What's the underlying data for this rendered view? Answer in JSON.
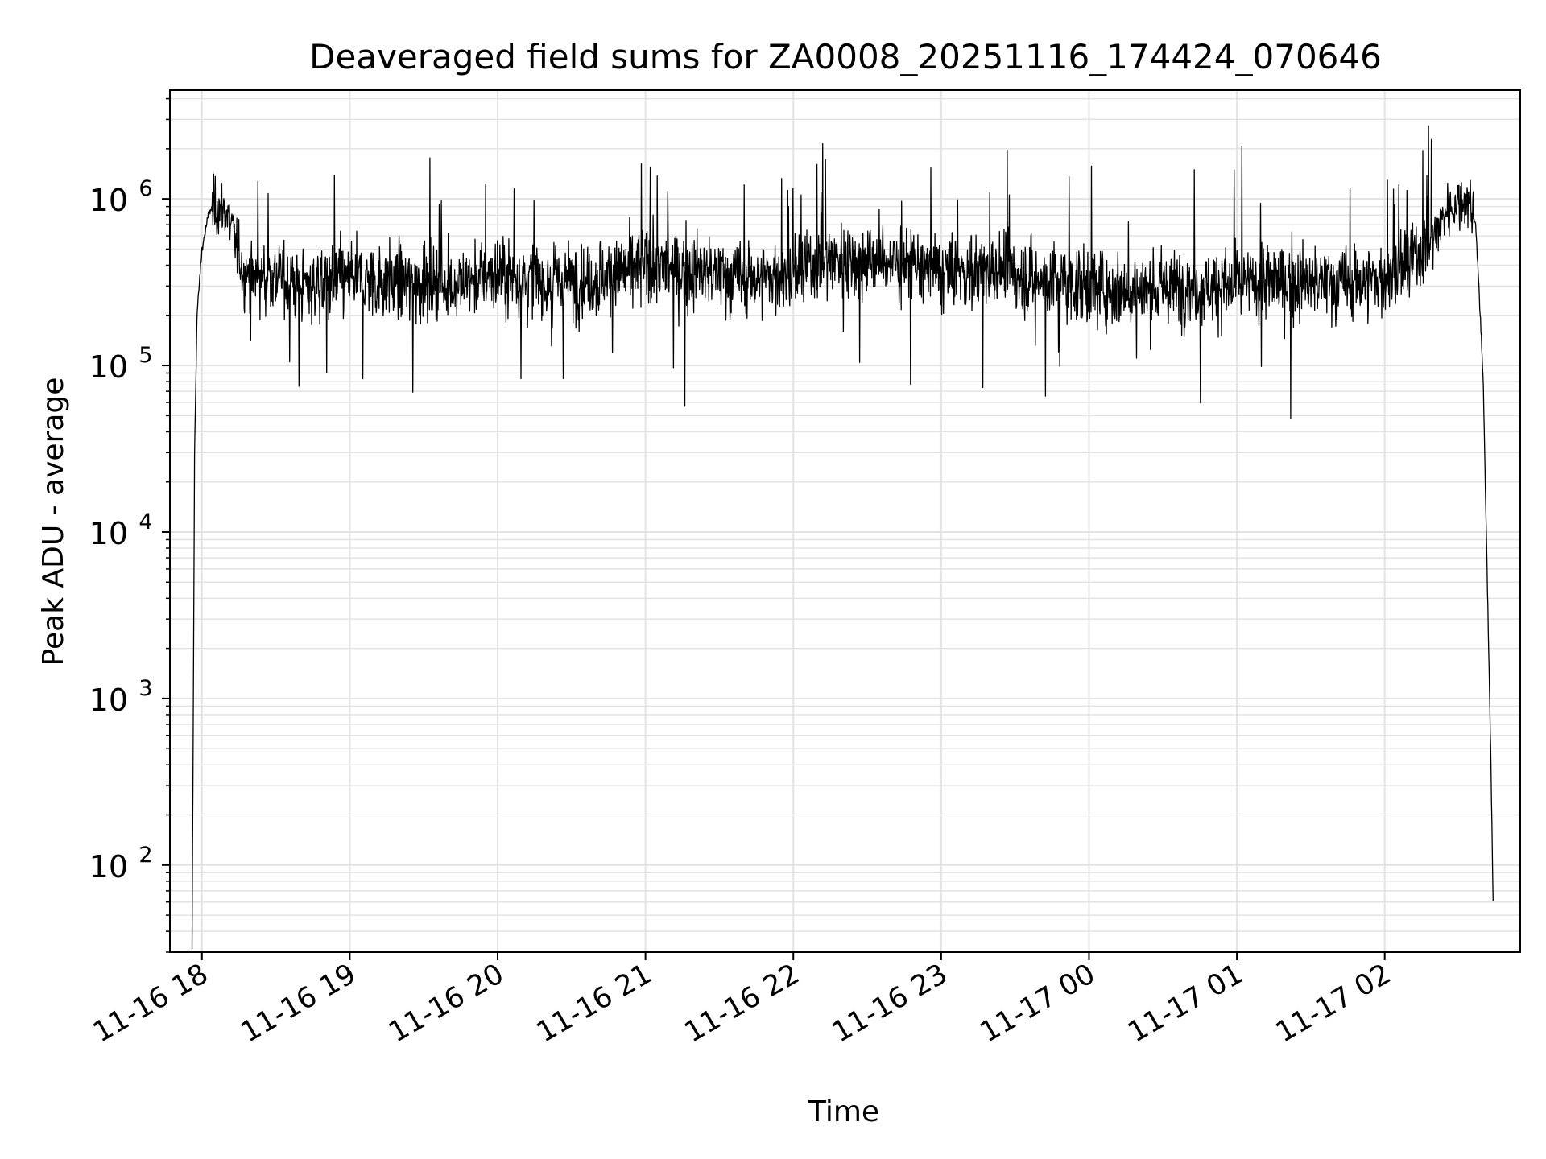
{
  "chart_data": {
    "type": "line",
    "title": "Deaveraged field sums for ZA0008_20251116_174424_070646",
    "xlabel": "Time",
    "ylabel": "Peak ADU - average",
    "y_scale": "log",
    "ylim": [
      30,
      4500000
    ],
    "xlim": [
      "2025-11-16 17:47",
      "2025-11-17 02:55"
    ],
    "grid": true,
    "x_ticks": [
      "11-16 18",
      "11-16 19",
      "11-16 20",
      "11-16 21",
      "11-16 22",
      "11-16 23",
      "11-17 00",
      "11-17 01",
      "11-17 02"
    ],
    "x_tick_times": [
      "2025-11-16 18:00",
      "2025-11-16 19:00",
      "2025-11-16 20:00",
      "2025-11-16 21:00",
      "2025-11-16 22:00",
      "2025-11-16 23:00",
      "2025-11-17 00:00",
      "2025-11-17 01:00",
      "2025-11-17 02:00"
    ],
    "y_ticks": [
      {
        "base": "10",
        "exp": "2",
        "value": 100
      },
      {
        "base": "10",
        "exp": "3",
        "value": 1000
      },
      {
        "base": "10",
        "exp": "4",
        "value": 10000
      },
      {
        "base": "10",
        "exp": "5",
        "value": 100000
      },
      {
        "base": "10",
        "exp": "6",
        "value": 1000000
      }
    ],
    "series": [
      {
        "color": "#000000",
        "x": [
          "2025-11-16 17:56",
          "2025-11-16 17:57",
          "2025-11-16 17:58",
          "2025-11-16 18:00",
          "2025-11-16 18:03",
          "2025-11-16 18:06",
          "2025-11-16 18:10",
          "2025-11-16 18:13",
          "2025-11-16 18:17",
          "2025-11-16 18:25",
          "2025-11-16 18:30",
          "2025-11-16 18:40",
          "2025-11-16 19:00",
          "2025-11-16 19:20",
          "2025-11-16 19:40",
          "2025-11-16 20:00",
          "2025-11-16 20:20",
          "2025-11-16 20:40",
          "2025-11-16 21:00",
          "2025-11-16 21:20",
          "2025-11-16 21:40",
          "2025-11-16 22:00",
          "2025-11-16 22:15",
          "2025-11-16 22:40",
          "2025-11-16 23:00",
          "2025-11-16 23:20",
          "2025-11-16 23:40",
          "2025-11-17 00:00",
          "2025-11-17 00:20",
          "2025-11-17 00:40",
          "2025-11-17 01:00",
          "2025-11-17 01:20",
          "2025-11-17 01:40",
          "2025-11-17 02:00",
          "2025-11-17 02:10",
          "2025-11-17 02:20",
          "2025-11-17 02:25",
          "2025-11-17 02:30",
          "2025-11-17 02:34",
          "2025-11-17 02:37",
          "2025-11-17 02:40",
          "2025-11-17 02:43",
          "2025-11-17 02:44"
        ],
        "y": [
          30,
          30000,
          200000,
          500000,
          850000,
          900000,
          850000,
          600000,
          350000,
          330000,
          350000,
          300000,
          330000,
          320000,
          300000,
          350000,
          320000,
          330000,
          400000,
          370000,
          330000,
          350000,
          450000,
          420000,
          360000,
          380000,
          330000,
          300000,
          280000,
          300000,
          300000,
          320000,
          310000,
          330000,
          400000,
          600000,
          850000,
          950000,
          1000000,
          700000,
          80000,
          500,
          60
        ]
      }
    ]
  }
}
